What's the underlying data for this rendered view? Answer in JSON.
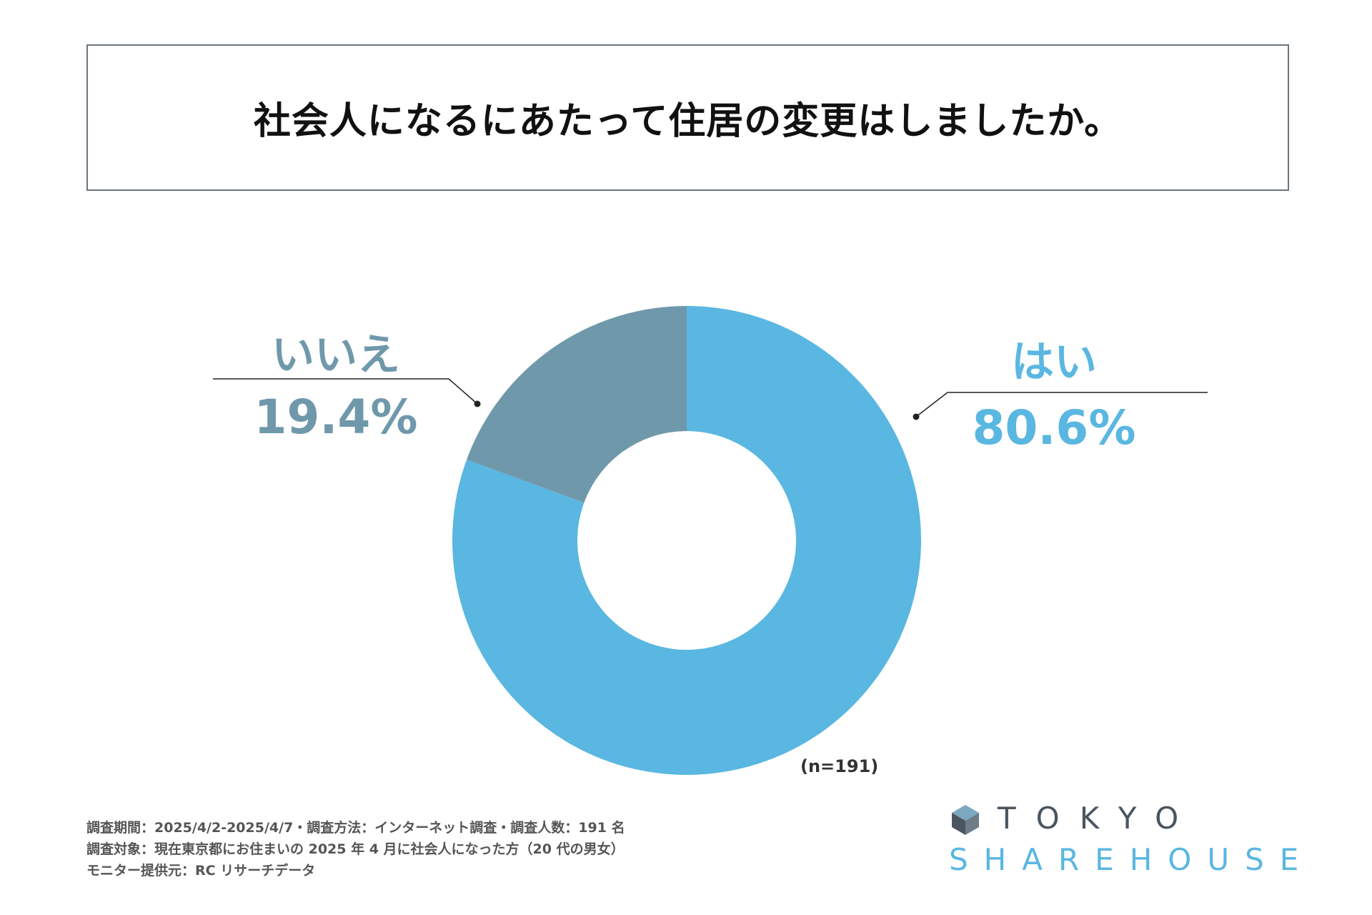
{
  "title": "社会人になるにあたって住居の変更はしましたか。",
  "chart_data": {
    "type": "pie",
    "variant": "donut",
    "title": "社会人になるにあたって住居の変更はしましたか。",
    "categories": [
      "はい",
      "いいえ"
    ],
    "values": [
      80.6,
      19.4
    ],
    "value_labels": [
      "80.6%",
      "19.4%"
    ],
    "colors": [
      "#5ab7e1",
      "#6f98ab"
    ],
    "start": "12 o'clock, clockwise",
    "sample_note": "(n=191)"
  },
  "labels": {
    "yes_name": "はい",
    "yes_pct": "80.6%",
    "no_name": "いいえ",
    "no_pct": "19.4%"
  },
  "footer": {
    "line1": "調査期間：2025/4/2-2025/4/7・調査方法：インターネット調査・調査人数：191 名",
    "line2": "調査対象：現在東京都にお住まいの 2025 年 4 月に社会人になった方（20 代の男女）",
    "line3": "モニター提供元：RC リサーチデータ"
  },
  "logo": {
    "line1": "TOKYO",
    "line2": "SHAREHOUSE",
    "icon": "house-cube-icon"
  }
}
